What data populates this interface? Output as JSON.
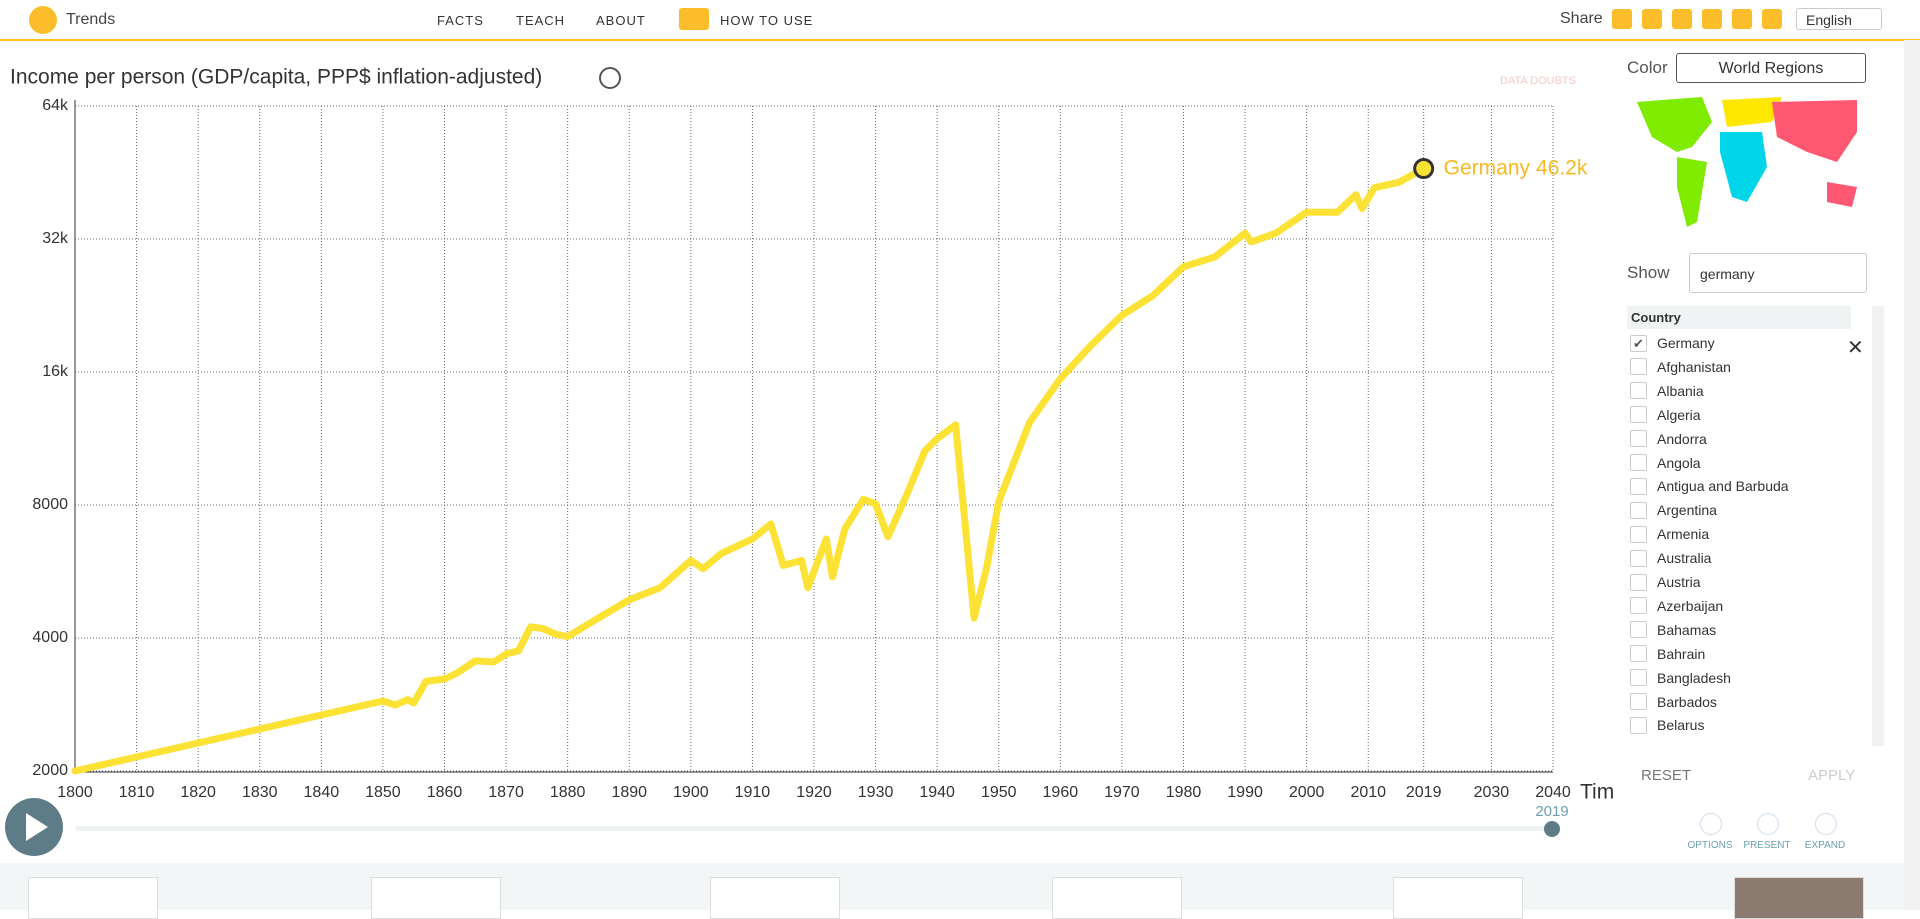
{
  "header": {
    "logo_text": "Trends",
    "nav": [
      "FACTS",
      "TEACH",
      "ABOUT",
      "HOW TO USE"
    ],
    "share": "Share",
    "language": "English"
  },
  "chart_data": {
    "type": "line",
    "title": "Income per person (GDP/capita, PPP$ inflation-adjusted)",
    "data_doubts": "DATA DOUBTS",
    "x_label": "Tim",
    "x": [
      1800,
      1850,
      1852,
      1854,
      1855,
      1857,
      1860,
      1862,
      1865,
      1868,
      1870,
      1872,
      1874,
      1876,
      1878,
      1880,
      1885,
      1890,
      1895,
      1900,
      1902,
      1905,
      1910,
      1913,
      1915,
      1918,
      1919,
      1922,
      1923,
      1925,
      1928,
      1930,
      1932,
      1935,
      1938,
      1940,
      1943,
      1946,
      1948,
      1950,
      1955,
      1960,
      1965,
      1970,
      1975,
      1980,
      1985,
      1990,
      1991,
      1995,
      2000,
      2005,
      2008,
      2009,
      2011,
      2015,
      2019
    ],
    "series": [
      {
        "name": "Germany",
        "color": "#fbe235",
        "values": [
          2000,
          2880,
          2820,
          2900,
          2850,
          3190,
          3230,
          3330,
          3550,
          3530,
          3680,
          3740,
          4240,
          4200,
          4080,
          4030,
          4440,
          4880,
          5200,
          5990,
          5740,
          6220,
          6700,
          7250,
          5840,
          5990,
          5200,
          6700,
          5500,
          7060,
          8240,
          8040,
          6780,
          8400,
          10600,
          11300,
          12150,
          4440,
          5740,
          8150,
          12300,
          15450,
          18400,
          21500,
          23800,
          27700,
          29100,
          33000,
          31500,
          33000,
          36800,
          36800,
          40300,
          37500,
          41800,
          43000,
          46200
        ]
      }
    ],
    "end_value_label": "46.2k",
    "xlim": [
      1800,
      2040
    ],
    "ylim": [
      2000,
      64000
    ],
    "log_y": true,
    "xticks": [
      1800,
      1810,
      1820,
      1830,
      1840,
      1850,
      1860,
      1870,
      1880,
      1890,
      1900,
      1910,
      1920,
      1930,
      1940,
      1950,
      1960,
      1970,
      1980,
      1990,
      2000,
      2010,
      2019,
      2030,
      2040
    ],
    "yticks": [
      2000,
      4000,
      8000,
      {
        "value": 16000,
        "label": "16k"
      },
      {
        "value": 32000,
        "label": "32k"
      },
      {
        "value": 64000,
        "label": "64k"
      }
    ],
    "grid": true,
    "time": 2019
  },
  "sidebar": {
    "color_label": "Color",
    "color_select": "World Regions",
    "show_label": "Show",
    "search": "germany",
    "list_header": "Country",
    "countries": [
      "Germany",
      "Afghanistan",
      "Albania",
      "Algeria",
      "Andorra",
      "Angola",
      "Antigua and Barbuda",
      "Argentina",
      "Armenia",
      "Australia",
      "Austria",
      "Azerbaijan",
      "Bahamas",
      "Bahrain",
      "Bangladesh",
      "Barbados",
      "Belarus"
    ],
    "reset": "RESET",
    "apply": "APPLY",
    "tools": [
      "OPTIONS",
      "PRESENT",
      "EXPAND"
    ]
  }
}
